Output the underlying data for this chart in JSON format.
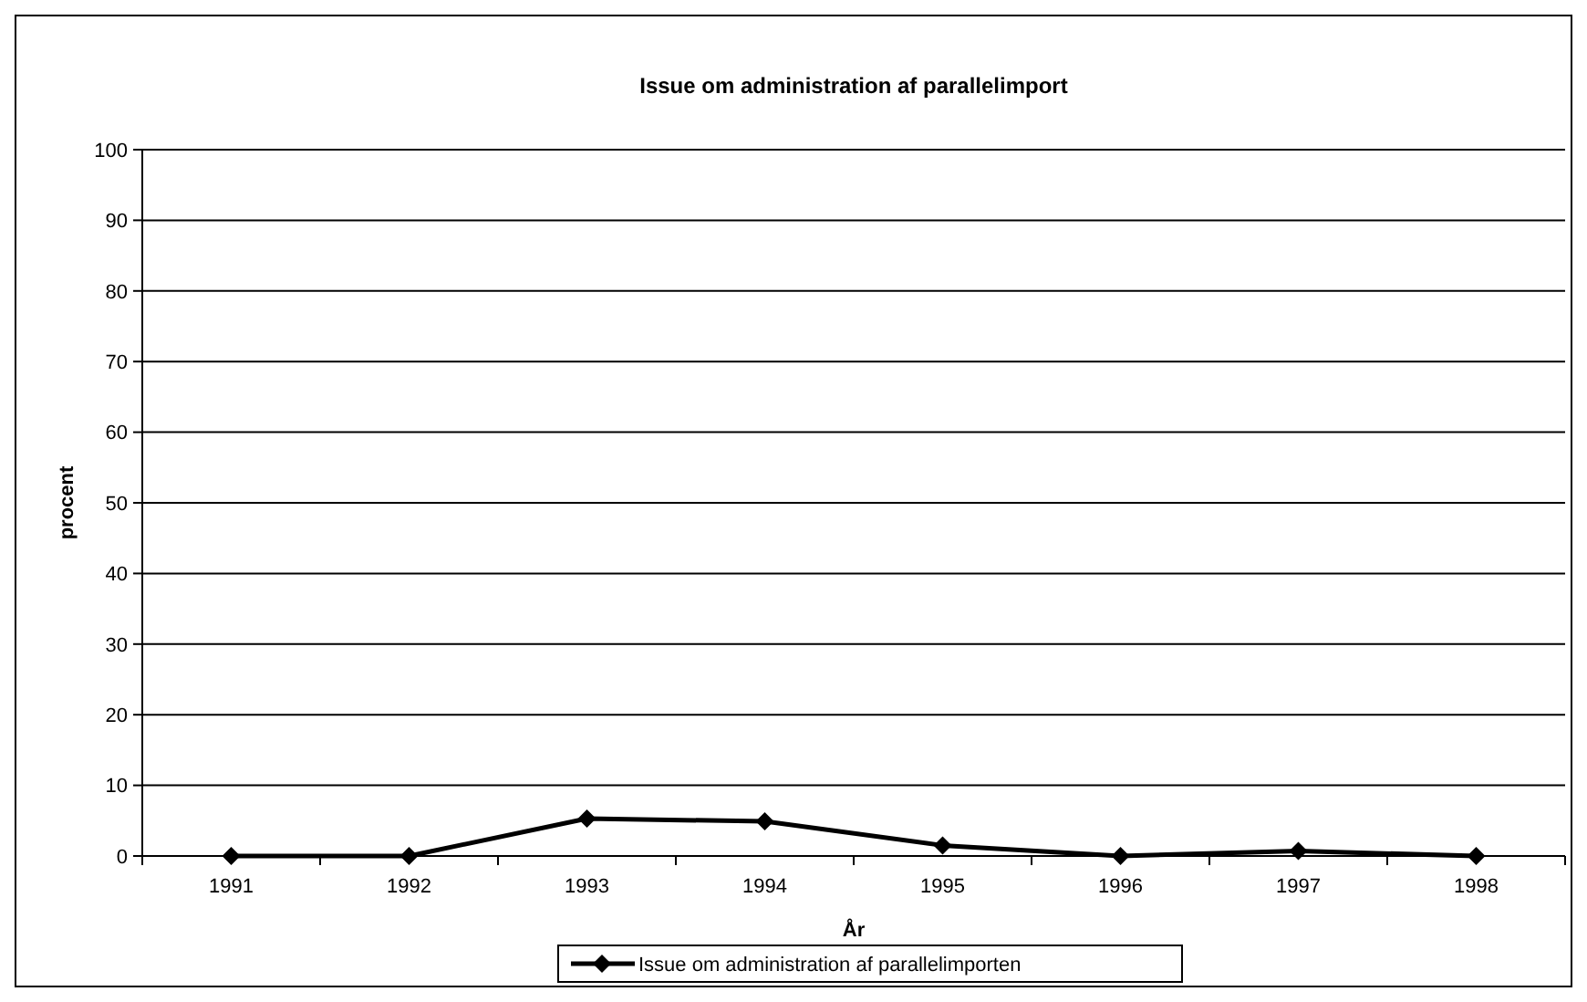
{
  "chart_data": {
    "type": "line",
    "title": "Issue om administration af parallelimport",
    "xlabel": "År",
    "ylabel": "procent",
    "categories": [
      "1991",
      "1992",
      "1993",
      "1994",
      "1995",
      "1996",
      "1997",
      "1998"
    ],
    "series": [
      {
        "name": "Issue om administration af parallelimporten",
        "color": "#000000",
        "values": [
          0,
          0,
          5.3,
          4.9,
          1.5,
          0,
          0.7,
          0
        ]
      }
    ],
    "ylim": [
      0,
      100
    ],
    "yticks": [
      0,
      10,
      20,
      30,
      40,
      50,
      60,
      70,
      80,
      90,
      100
    ],
    "grid": "y",
    "legend": "bottom",
    "marker": "diamond",
    "line_style": "solid"
  }
}
